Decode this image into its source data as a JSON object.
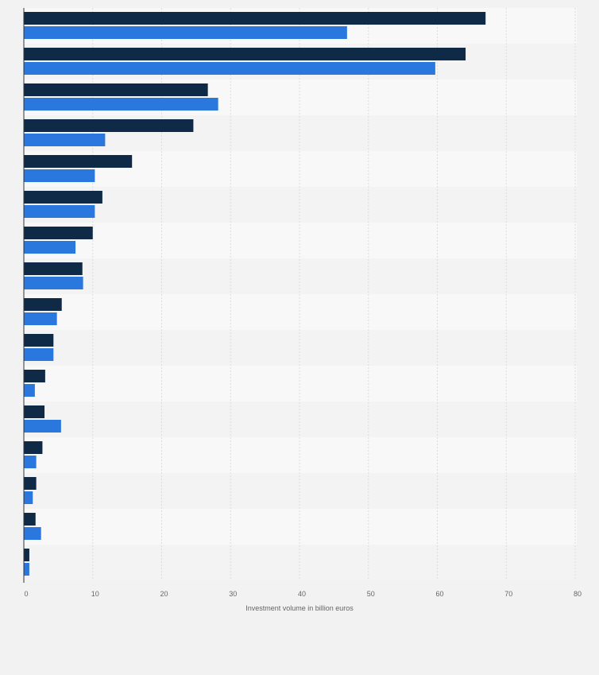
{
  "chart_data": {
    "type": "bar",
    "orientation": "horizontal",
    "xlabel": "Investment volume in billion euros",
    "xlim": [
      0,
      80
    ],
    "xticks": [
      0,
      10,
      20,
      30,
      40,
      50,
      60,
      70,
      80
    ],
    "grid": true,
    "series": [
      {
        "color": "#0f2a47",
        "values": [
          67.0,
          64.1,
          26.7,
          24.6,
          15.7,
          11.4,
          10.0,
          8.5,
          5.5,
          4.3,
          3.1,
          3.0,
          2.7,
          1.8,
          1.7,
          0.8
        ]
      },
      {
        "color": "#2a78dd",
        "values": [
          46.9,
          59.7,
          28.2,
          11.8,
          10.3,
          10.3,
          7.5,
          8.6,
          4.8,
          4.3,
          1.6,
          5.4,
          1.8,
          1.3,
          2.5,
          0.8
        ]
      }
    ]
  }
}
